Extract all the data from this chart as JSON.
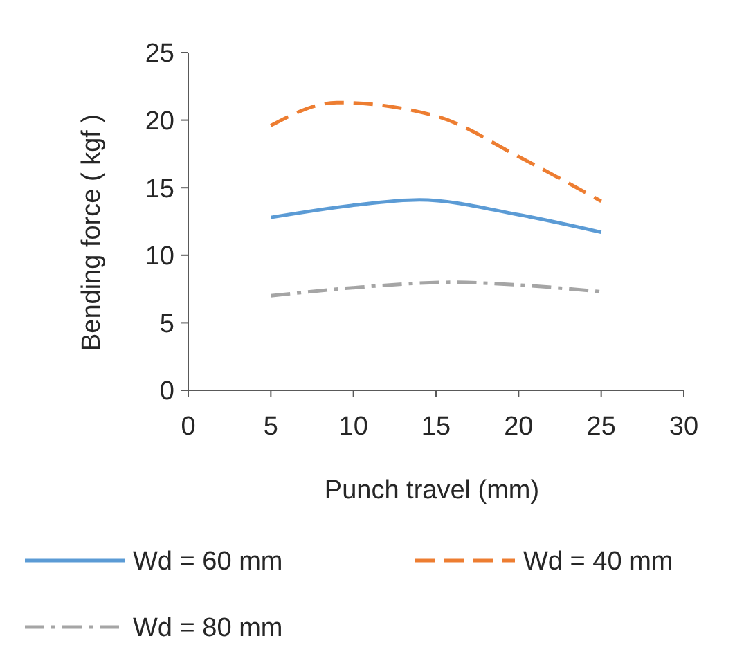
{
  "chart_data": {
    "type": "line",
    "xlabel": "Punch travel (mm)",
    "ylabel": "Bending force ( kgf )",
    "xlim": [
      0,
      30
    ],
    "xticks": [
      0,
      5,
      10,
      15,
      20,
      25,
      30
    ],
    "ylim": [
      0,
      25
    ],
    "yticks": [
      0,
      5,
      10,
      15,
      20,
      25
    ],
    "grid": false,
    "legend": "bottom",
    "marker": "none",
    "series": [
      {
        "name": "Wd = 60 mm",
        "color": "#5b9bd5",
        "line_style": "solid",
        "x": [
          5,
          10,
          14,
          20,
          25
        ],
        "values": [
          12.8,
          13.7,
          14.1,
          13.0,
          11.7
        ]
      },
      {
        "name": "Wd = 40 mm",
        "color": "#ed7d31",
        "line_style": "dashed",
        "x": [
          5,
          9,
          15,
          20,
          25
        ],
        "values": [
          19.6,
          21.3,
          20.3,
          17.3,
          14.0
        ]
      },
      {
        "name": "Wd = 80 mm",
        "color": "#a5a5a5",
        "line_style": "dashdot",
        "x": [
          5,
          10,
          16,
          20,
          25
        ],
        "values": [
          7.0,
          7.6,
          8.0,
          7.8,
          7.3
        ]
      }
    ]
  }
}
